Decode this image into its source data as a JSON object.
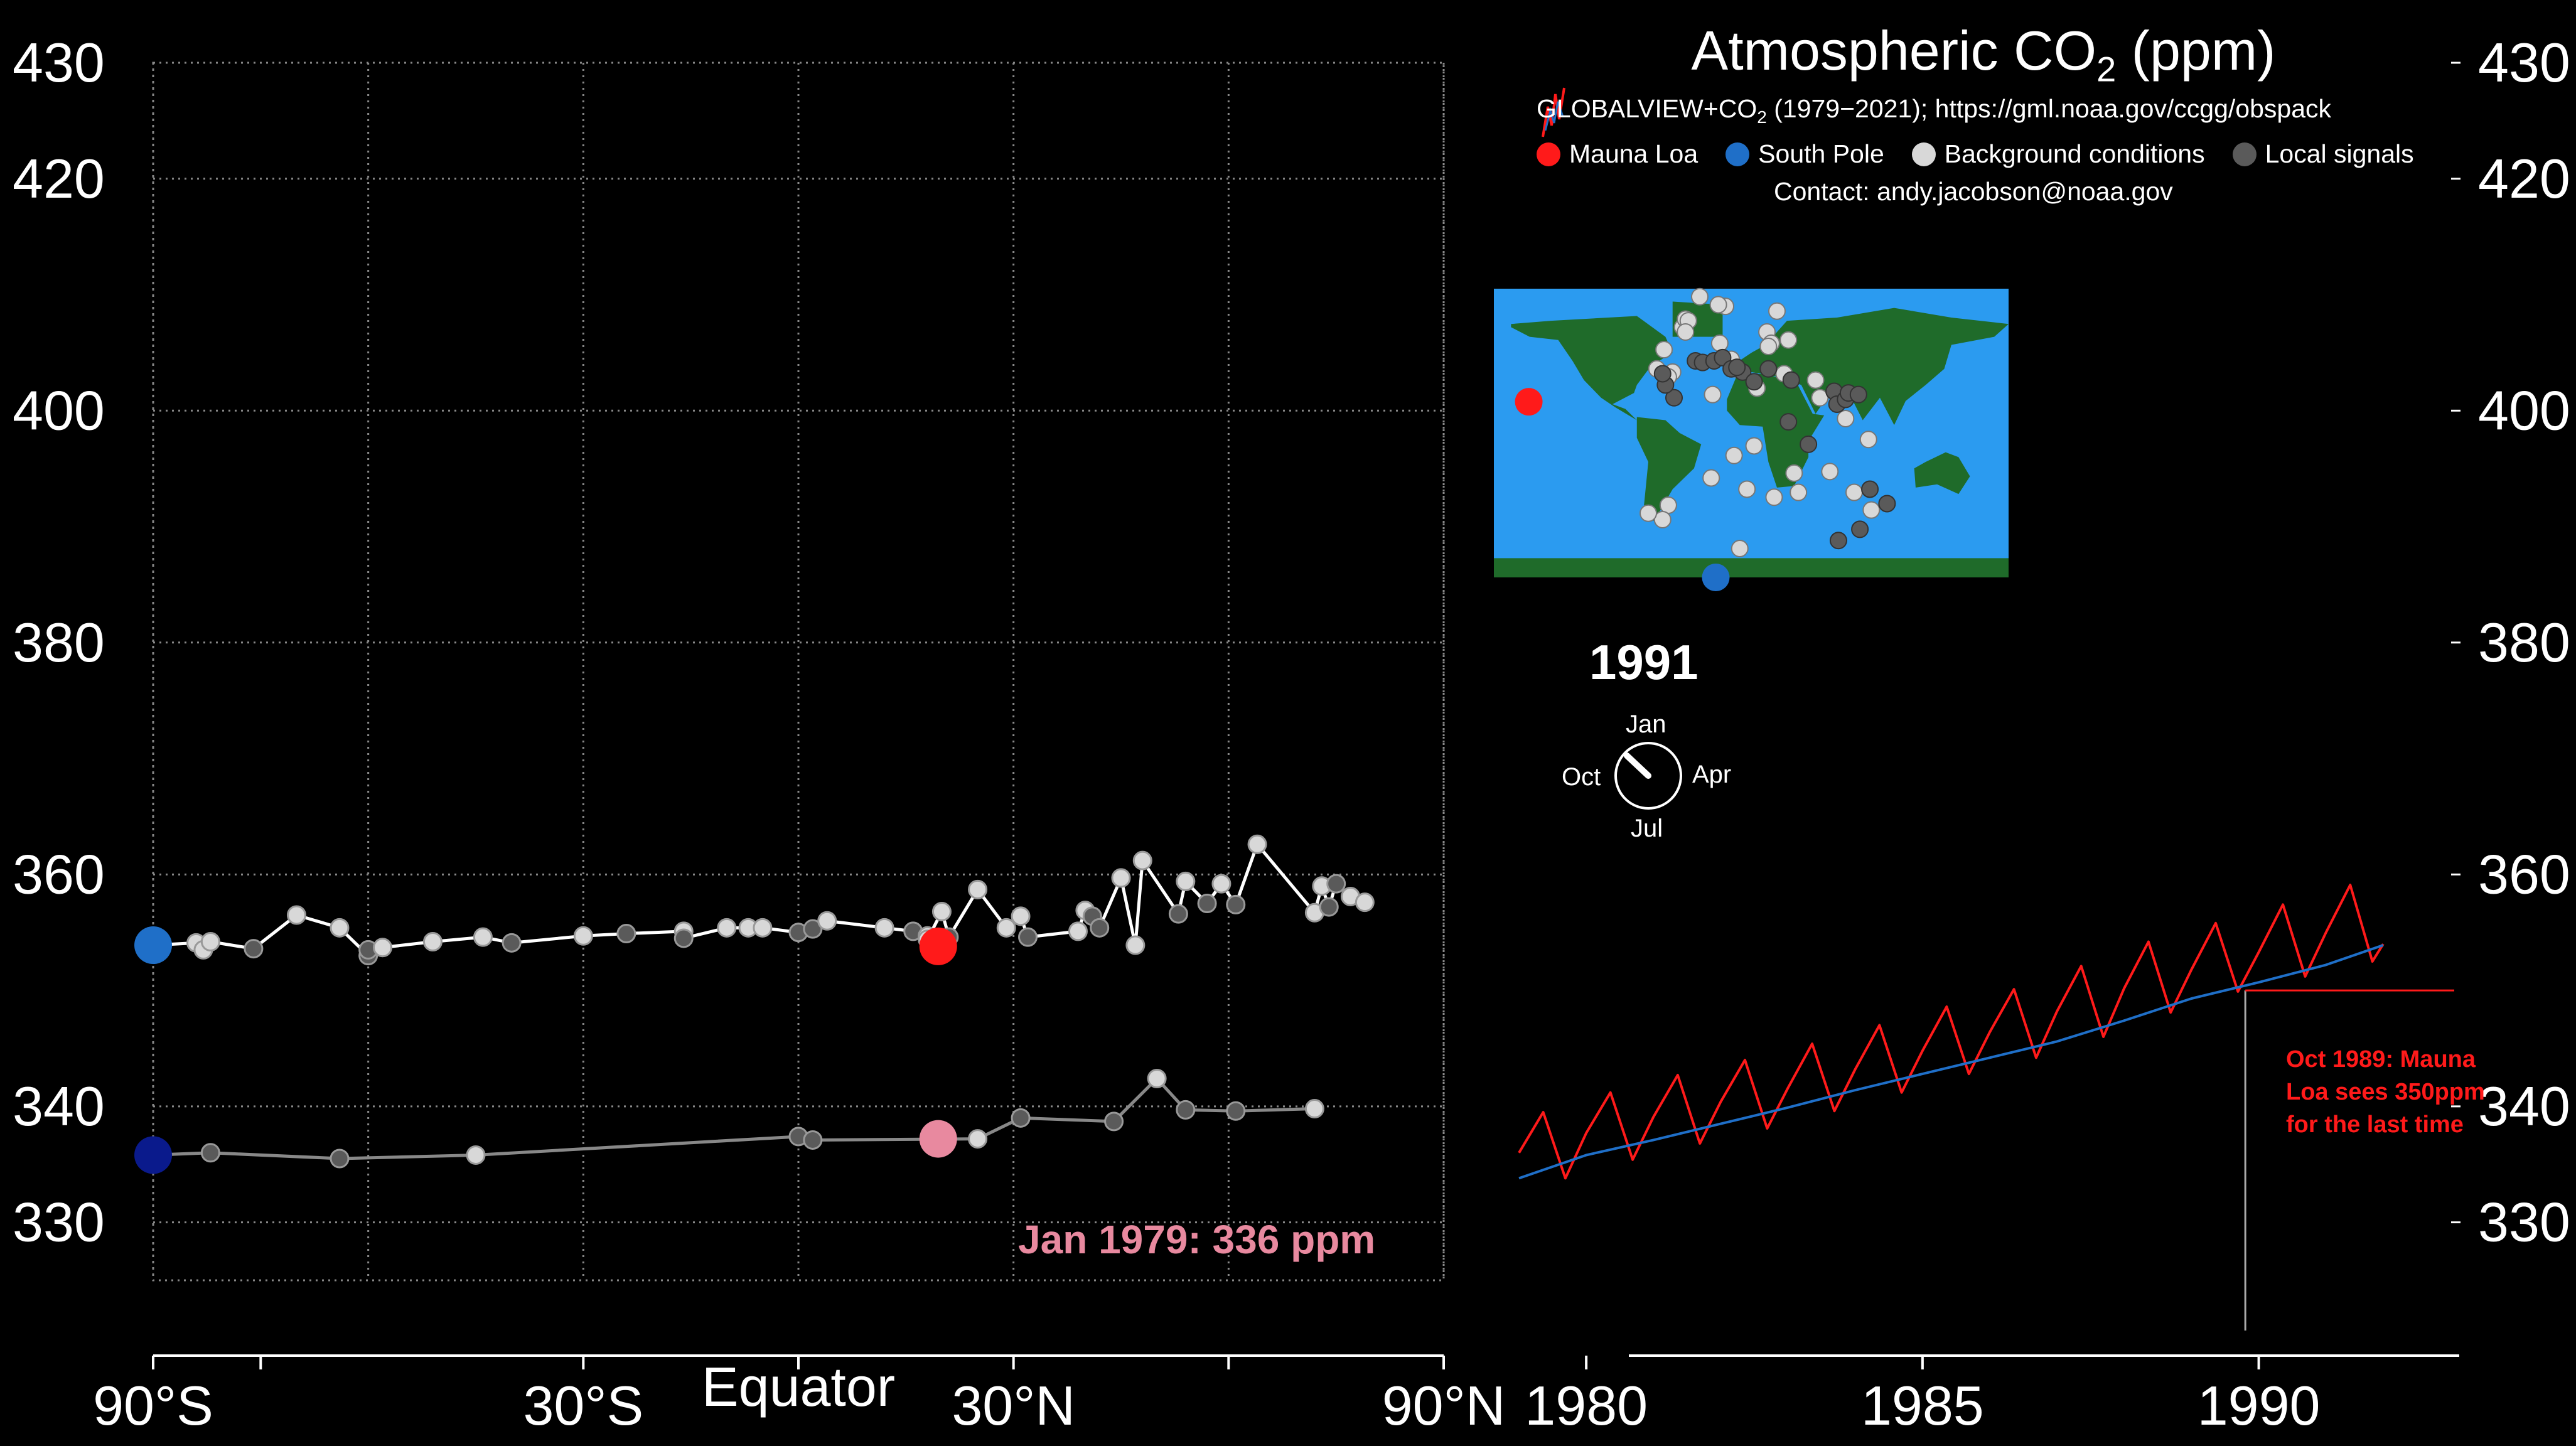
{
  "title": {
    "main": "Atmospheric CO",
    "sub": "2",
    "unit": " (ppm)"
  },
  "source": {
    "prefix": "GLOBALVIEW+CO",
    "sub": "2",
    "suffix": " (1979−2021); https://gml.noaa.gov/ccgg/obspack"
  },
  "contact": "Contact: andy.jacobson@noaa.gov",
  "legend": [
    {
      "label": "Mauna Loa",
      "color": "#ff1a1a"
    },
    {
      "label": "South Pole",
      "color": "#1f6fc8"
    },
    {
      "label": "Background conditions",
      "color": "#d8d8d8"
    },
    {
      "label": "Local signals",
      "color": "#5a5a5a"
    }
  ],
  "year": "1991",
  "clock": {
    "top": "Jan",
    "right": "Apr",
    "bottom": "Jul",
    "left": "Oct",
    "month_fraction": 0.87
  },
  "annotations": {
    "mlo_note": "Oct 1989: Mauna Loa sees 350ppm for the last time",
    "jan_note": "Jan 1979: 336 ppm"
  },
  "colors": {
    "mauna_loa": "#ff1a1a",
    "south_pole": "#1f6fc8",
    "south_pole_1979": "#0a1a8c",
    "mauna_loa_1979": "#e8899f",
    "background": "#d8d8d8",
    "local": "#5a5a5a",
    "trend_line": "#ffffff",
    "old_line": "#888888",
    "ocean": "#2b9bf0",
    "land": "#1f6b2a"
  },
  "chart_data": [
    {
      "type": "scatter",
      "title": "",
      "xlabel": "",
      "ylabel": "",
      "xlim": [
        -90,
        90
      ],
      "ylim": [
        325,
        430
      ],
      "x_ticks": [
        -90,
        -60,
        -30,
        0,
        30,
        60,
        90
      ],
      "x_tick_labels": [
        "90°S",
        "",
        "30°S",
        "Equator",
        "30°N",
        "",
        "90°N"
      ],
      "y_ticks": [
        330,
        340,
        360,
        380,
        400,
        420,
        430
      ],
      "grid": true,
      "series": [
        {
          "time": "1991",
          "x": [
            -90,
            -84,
            -83,
            -82,
            -76,
            -70,
            -64,
            -60,
            -60,
            -58,
            -51,
            -44,
            -40,
            -30,
            -24,
            -16,
            -16,
            -10,
            -7,
            -5,
            0,
            2,
            4,
            12,
            16,
            18,
            18,
            20,
            21,
            25,
            29,
            31,
            32,
            39,
            40,
            41,
            42,
            45,
            47,
            48,
            53,
            54,
            57,
            59,
            61,
            64,
            72,
            73,
            74,
            75,
            77,
            79
          ],
          "y": [
            353.9,
            354.1,
            353.5,
            354.2,
            353.6,
            356.5,
            355.4,
            353.0,
            353.5,
            353.7,
            354.2,
            354.6,
            354.1,
            354.7,
            354.9,
            355.1,
            354.5,
            355.4,
            355.4,
            355.4,
            355.0,
            355.3,
            356.0,
            355.4,
            355.1,
            354.7,
            354.4,
            356.8,
            354.6,
            358.7,
            355.4,
            356.4,
            354.6,
            355.1,
            356.9,
            356.4,
            355.4,
            359.7,
            353.9,
            361.2,
            356.6,
            359.4,
            357.5,
            359.2,
            357.4,
            362.6,
            356.7,
            359.0,
            357.2,
            359.2,
            358.1,
            357.6
          ]
        },
        {
          "time": "1979",
          "x": [
            -90,
            -82,
            -64,
            -45,
            0,
            2,
            25,
            31,
            44,
            50,
            54,
            61,
            72
          ],
          "y": [
            335.8,
            336.0,
            335.5,
            335.8,
            337.4,
            337.1,
            337.2,
            339.0,
            338.7,
            342.4,
            339.7,
            339.6,
            339.8
          ]
        },
        {
          "name": "Mauna Loa",
          "x": [
            19.5
          ],
          "y": [
            353.8
          ]
        },
        {
          "name": "South Pole",
          "x": [
            -90
          ],
          "y": [
            353.9
          ]
        }
      ]
    },
    {
      "type": "line",
      "title": "",
      "xlabel": "",
      "ylabel": "",
      "xlim": [
        1979,
        1993
      ],
      "ylim": [
        325,
        430
      ],
      "x_ticks": [
        1980,
        1985,
        1990
      ],
      "y_ticks": [
        330,
        340,
        360,
        380,
        400,
        420,
        430
      ],
      "grid": false,
      "series": [
        {
          "name": "Mauna Loa",
          "x": [
            1979.0,
            1979.36,
            1979.69,
            1980.0,
            1980.36,
            1980.69,
            1981.0,
            1981.36,
            1981.69,
            1982.0,
            1982.36,
            1982.69,
            1983.0,
            1983.36,
            1983.69,
            1984.0,
            1984.36,
            1984.69,
            1985.0,
            1985.36,
            1985.69,
            1986.0,
            1986.36,
            1986.69,
            1987.0,
            1987.36,
            1987.69,
            1988.0,
            1988.36,
            1988.69,
            1989.0,
            1989.36,
            1989.69,
            1990.0,
            1990.36,
            1990.69,
            1991.0,
            1991.36,
            1991.69,
            1991.85
          ],
          "y": [
            336.0,
            339.5,
            333.8,
            337.7,
            341.2,
            335.4,
            339.1,
            342.7,
            336.8,
            340.4,
            344.0,
            338.1,
            341.6,
            345.4,
            339.6,
            343.2,
            347.0,
            341.2,
            344.8,
            348.6,
            342.8,
            346.4,
            350.1,
            344.2,
            348.2,
            352.1,
            346.0,
            350.2,
            354.2,
            348.1,
            351.8,
            355.8,
            349.9,
            353.3,
            357.4,
            351.2,
            355.0,
            359.1,
            352.5,
            354.0
          ]
        },
        {
          "name": "South Pole",
          "x": [
            1979.0,
            1980.0,
            1981.0,
            1982.0,
            1983.0,
            1984.0,
            1985.0,
            1986.0,
            1987.0,
            1988.0,
            1989.0,
            1990.0,
            1991.0,
            1991.85
          ],
          "y": [
            333.8,
            335.8,
            337.1,
            338.5,
            339.9,
            341.4,
            342.8,
            344.2,
            345.6,
            347.4,
            349.3,
            350.7,
            352.2,
            353.9
          ]
        }
      ]
    }
  ],
  "map_stations": {
    "background": [
      [
        -48,
        66
      ],
      [
        -46,
        71
      ],
      [
        -44,
        70
      ],
      [
        -46,
        63
      ],
      [
        -18,
        79
      ],
      [
        -23,
        80
      ],
      [
        -36,
        85
      ],
      [
        -22,
        56
      ],
      [
        -14,
        46
      ],
      [
        -66,
        40
      ],
      [
        -61,
        52
      ],
      [
        -55,
        38
      ],
      [
        -27,
        24
      ],
      [
        18,
        76
      ],
      [
        26,
        58
      ],
      [
        11,
        63
      ],
      [
        14,
        56
      ],
      [
        12,
        54
      ],
      [
        -11,
        40
      ],
      [
        4,
        28
      ],
      [
        23,
        37
      ],
      [
        45,
        33
      ],
      [
        48,
        22
      ],
      [
        66,
        9
      ],
      [
        82,
        -4
      ],
      [
        -12,
        -14
      ],
      [
        2,
        -8
      ],
      [
        30,
        -25
      ],
      [
        55,
        -24
      ],
      [
        -28,
        -28
      ],
      [
        16,
        -40
      ],
      [
        -8,
        -72
      ],
      [
        -58,
        -45
      ],
      [
        -62,
        -54
      ],
      [
        -72,
        -50
      ],
      [
        -3,
        -35
      ],
      [
        33,
        -37
      ],
      [
        72,
        -37
      ],
      [
        84,
        -48
      ],
      [
        -58,
        35
      ]
    ],
    "local": [
      [
        -39,
        45
      ],
      [
        -34,
        44
      ],
      [
        -26,
        45
      ],
      [
        -20,
        47
      ],
      [
        -14,
        40
      ],
      [
        -6,
        38
      ],
      [
        2,
        32
      ],
      [
        12,
        40
      ],
      [
        28,
        33
      ],
      [
        -54,
        22
      ],
      [
        -60,
        30
      ],
      [
        -62,
        37
      ],
      [
        26,
        7
      ],
      [
        40,
        -7
      ],
      [
        58,
        26
      ],
      [
        60,
        18
      ],
      [
        66,
        21
      ],
      [
        68,
        25
      ],
      [
        75,
        24
      ],
      [
        83,
        -35
      ],
      [
        76,
        -60
      ],
      [
        61,
        -67
      ],
      [
        95,
        -44
      ],
      [
        -10,
        41
      ]
    ],
    "mauna_loa": [
      -155.6,
      19.5
    ],
    "south_pole": [
      -24.8,
      -90
    ]
  }
}
